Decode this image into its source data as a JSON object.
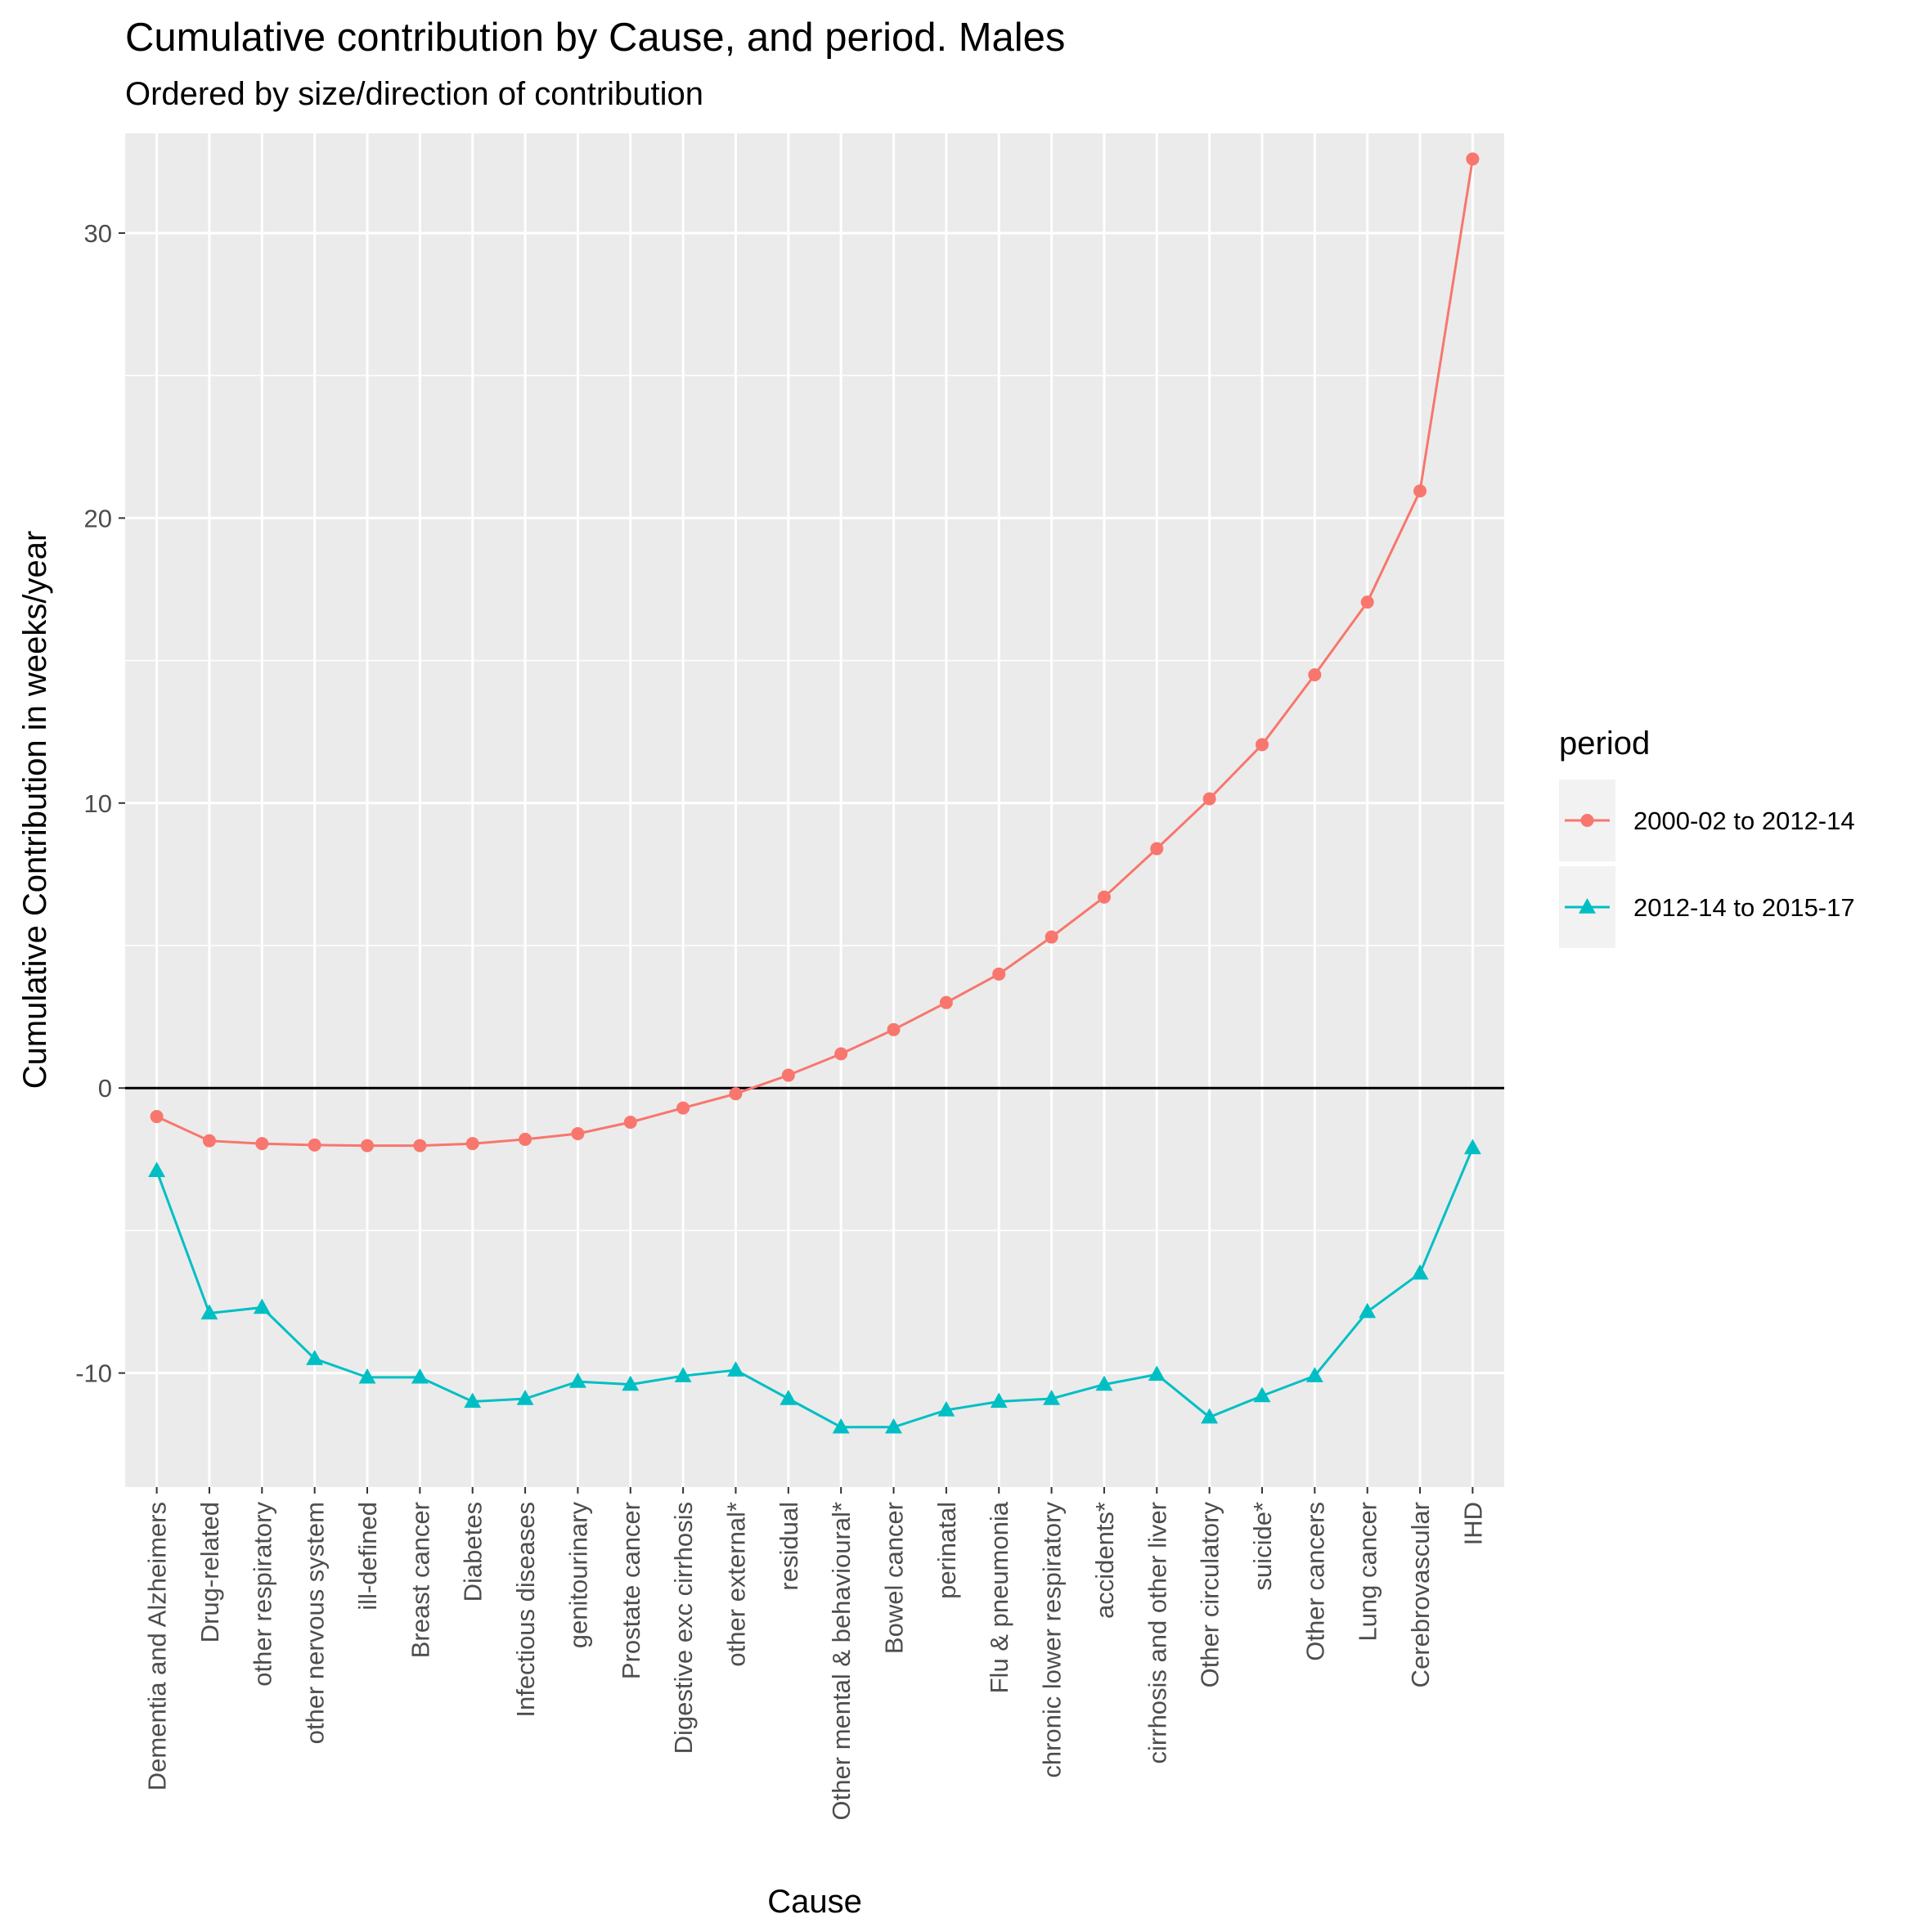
{
  "chart_data": {
    "type": "line",
    "title": "Cumulative contribution by Cause, and period. Males",
    "subtitle": "Ordered by size/direction of contribution",
    "xlabel": "Cause",
    "ylabel": "Cumulative Contribution in weeks/year",
    "ylim": [
      -14,
      33.5
    ],
    "yticks": [
      -10,
      0,
      10,
      20,
      30
    ],
    "grid": true,
    "zero_line": true,
    "legend": {
      "title": "period",
      "position": "right"
    },
    "categories": [
      "Dementia and Alzheimers",
      "Drug-related",
      "other respiratory",
      "other nervous system",
      "ill-defined",
      "Breast cancer",
      "Diabetes",
      "Infectious diseases",
      "genitourinary",
      "Prostate cancer",
      "Digestive exc cirrhosis",
      "other external*",
      "residual",
      "Other mental & behavioural*",
      "Bowel cancer",
      "perinatal",
      "Flu & pneumonia",
      "chronic lower respiratory",
      "accidents*",
      "cirrhosis and other liver",
      "Other circulatory",
      "suicide*",
      "Other cancers",
      "Lung cancer",
      "Cerebrovascular",
      "IHD"
    ],
    "series": [
      {
        "name": "2000-02 to 2012-14",
        "color": "#F8766D",
        "marker": "circle",
        "values": [
          -1.0,
          -1.85,
          -1.95,
          -2.0,
          -2.02,
          -2.02,
          -1.95,
          -1.8,
          -1.6,
          -1.2,
          -0.7,
          -0.2,
          0.45,
          1.2,
          2.05,
          3.0,
          4.0,
          5.3,
          6.7,
          8.4,
          10.15,
          12.05,
          14.5,
          17.05,
          20.95,
          32.6
        ]
      },
      {
        "name": "2012-14 to 2015-17",
        "color": "#00BFC4",
        "marker": "triangle",
        "values": [
          -2.9,
          -7.9,
          -7.7,
          -9.5,
          -10.15,
          -10.15,
          -11.0,
          -10.9,
          -10.3,
          -10.4,
          -10.1,
          -9.9,
          -10.9,
          -11.9,
          -11.9,
          -11.3,
          -11.0,
          -10.9,
          -10.4,
          -10.05,
          -11.55,
          -10.8,
          -10.1,
          -7.85,
          -6.5,
          -2.1
        ]
      }
    ]
  }
}
